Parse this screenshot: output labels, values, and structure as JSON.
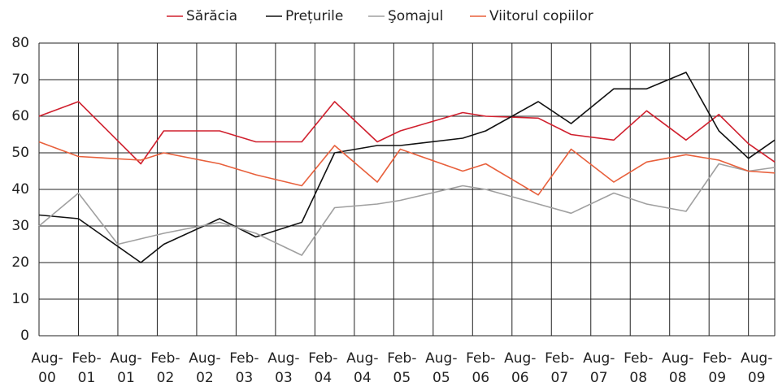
{
  "chart_data": {
    "type": "line",
    "xlim": [
      0,
      112
    ],
    "xticks": [
      {
        "value": 0,
        "label": "Aug-00"
      },
      {
        "value": 6,
        "label": "Feb-01"
      },
      {
        "value": 12,
        "label": "Aug-01"
      },
      {
        "value": 18,
        "label": "Feb-02"
      },
      {
        "value": 24,
        "label": "Aug-02"
      },
      {
        "value": 30,
        "label": "Feb-03"
      },
      {
        "value": 36,
        "label": "Aug-03"
      },
      {
        "value": 42,
        "label": "Feb-04"
      },
      {
        "value": 48,
        "label": "Aug-04"
      },
      {
        "value": 54,
        "label": "Feb-05"
      },
      {
        "value": 60,
        "label": "Aug-05"
      },
      {
        "value": 66,
        "label": "Feb-06"
      },
      {
        "value": 72,
        "label": "Aug-06"
      },
      {
        "value": 78,
        "label": "Feb-07"
      },
      {
        "value": 84,
        "label": "Aug-07"
      },
      {
        "value": 90,
        "label": "Feb-08"
      },
      {
        "value": 96,
        "label": "Aug-08"
      },
      {
        "value": 102,
        "label": "Feb-09"
      },
      {
        "value": 108,
        "label": "Aug-09"
      }
    ],
    "ylim": [
      0,
      80
    ],
    "yticks": [
      0,
      10,
      20,
      30,
      40,
      50,
      60,
      70,
      80
    ],
    "grid": true,
    "legend": "top",
    "series": [
      {
        "name": "Sărăcia",
        "color": "#d0202e",
        "x": [
          0,
          6,
          15.5,
          19,
          27.5,
          33,
          40,
          45,
          51.5,
          55,
          64.5,
          68,
          76,
          81,
          87.5,
          92.5,
          98.5,
          103.5,
          108,
          112
        ],
        "values": [
          60,
          64,
          47,
          56,
          56,
          53,
          53,
          64,
          53,
          56,
          61,
          60,
          59.5,
          55,
          53.5,
          61.5,
          53.5,
          60.5,
          52.5,
          47.5
        ]
      },
      {
        "name": "Prețurile",
        "color": "#111111",
        "x": [
          0,
          6,
          15.5,
          19,
          27.5,
          33,
          40,
          45,
          51.5,
          55,
          64.5,
          68,
          76,
          81,
          87.5,
          92.5,
          98.5,
          103.5,
          108,
          112
        ],
        "values": [
          33,
          32,
          20,
          25,
          32,
          27,
          31,
          50,
          52,
          52,
          54,
          56,
          64,
          58,
          67.5,
          67.5,
          72,
          56,
          48.5,
          53.5
        ]
      },
      {
        "name": "Şomajul",
        "color": "#a0a0a0",
        "x": [
          0,
          6,
          12,
          19,
          27.5,
          33,
          40,
          45,
          51.5,
          55,
          64.5,
          68,
          76,
          81,
          87.5,
          92.5,
          98.5,
          103.5,
          108,
          112
        ],
        "values": [
          30,
          39,
          25,
          28,
          31,
          28,
          22,
          35,
          36,
          37,
          41,
          40,
          36,
          33.5,
          39,
          36,
          34,
          47,
          45,
          46
        ]
      },
      {
        "name": "Viitorul copiilor",
        "color": "#e8603c",
        "x": [
          0,
          6,
          15.5,
          19,
          27.5,
          33,
          40,
          45,
          51.5,
          55,
          64.5,
          68,
          76,
          81,
          87.5,
          92.5,
          98.5,
          103.5,
          108,
          112
        ],
        "values": [
          53,
          49,
          48,
          50,
          47,
          44,
          41,
          52,
          42,
          51,
          45,
          47,
          38.5,
          51,
          42,
          47.5,
          49.5,
          48,
          45,
          44.5
        ]
      }
    ]
  }
}
